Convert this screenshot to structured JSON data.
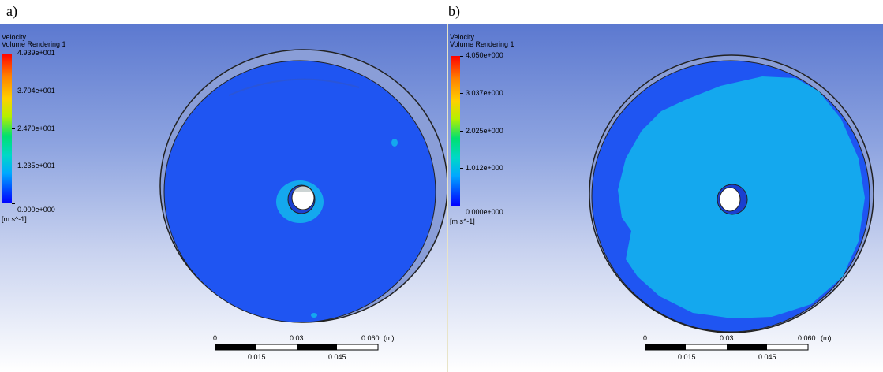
{
  "panels": [
    {
      "label": "a)",
      "legend": {
        "title": "Velocity",
        "subtitle": "Volume Rendering 1",
        "ticks": [
          "4.939e+001",
          "3.704e+001",
          "2.470e+001",
          "1.235e+001",
          "0.000e+000"
        ],
        "unit": "[m s^-1]"
      },
      "scale": {
        "top": [
          "0",
          "0.03",
          "0.060",
          "(m)"
        ],
        "bottom": [
          "0.015",
          "0.045"
        ]
      }
    },
    {
      "label": "b)",
      "legend": {
        "title": "Velocity",
        "subtitle": "Volume Rendering 1",
        "ticks": [
          "4.050e+000",
          "3.037e+000",
          "2.025e+000",
          "1.012e+000",
          "0.000e+000"
        ],
        "unit": "[m s^-1]"
      },
      "scale": {
        "top": [
          "0",
          "0.03",
          "0.060",
          "(m)"
        ],
        "bottom": [
          "0.015",
          "0.045"
        ]
      }
    }
  ],
  "colors": {
    "dark_blue": "#1f55f2",
    "light_blue": "#14a8ee",
    "background_top": "#5c79d0"
  }
}
